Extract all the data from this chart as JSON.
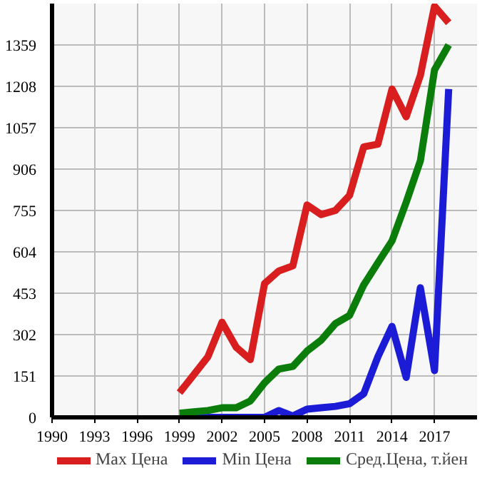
{
  "chart_data": {
    "type": "line",
    "x": [
      1999,
      2000,
      2001,
      2002,
      2003,
      2004,
      2005,
      2006,
      2007,
      2008,
      2009,
      2010,
      2011,
      2012,
      2013,
      2014,
      2015,
      2016,
      2017,
      2018
    ],
    "series": [
      {
        "name": "Max Цена",
        "color": "#d81e1e",
        "values": [
          90,
          155,
          221,
          347,
          256,
          211,
          488,
          534,
          553,
          775,
          740,
          755,
          810,
          987,
          997,
          1198,
          1097,
          1248,
          1500,
          1440
        ]
      },
      {
        "name": "Min Цена",
        "color": "#1c1cd6",
        "values": [
          0,
          0,
          0,
          0,
          0,
          0,
          0,
          25,
          5,
          30,
          35,
          40,
          50,
          86,
          221,
          332,
          146,
          473,
          171,
          1198
        ]
      },
      {
        "name": "Сред.Цена, т.йен",
        "color": "#0a7d0a",
        "values": [
          15,
          20,
          25,
          35,
          35,
          60,
          126,
          176,
          186,
          242,
          282,
          342,
          372,
          483,
          564,
          644,
          785,
          936,
          1268,
          1359
        ]
      }
    ],
    "xlim": [
      1990,
      2020
    ],
    "xticks": [
      1990,
      1993,
      1996,
      1999,
      2002,
      2005,
      2008,
      2011,
      2014,
      2017
    ],
    "ylim": [
      0,
      1510
    ],
    "yticks": [
      0,
      151,
      302,
      453,
      604,
      755,
      906,
      1057,
      1208,
      1359
    ],
    "grid": true,
    "legend": "bottom",
    "marker": "none",
    "line_style": "solid"
  }
}
